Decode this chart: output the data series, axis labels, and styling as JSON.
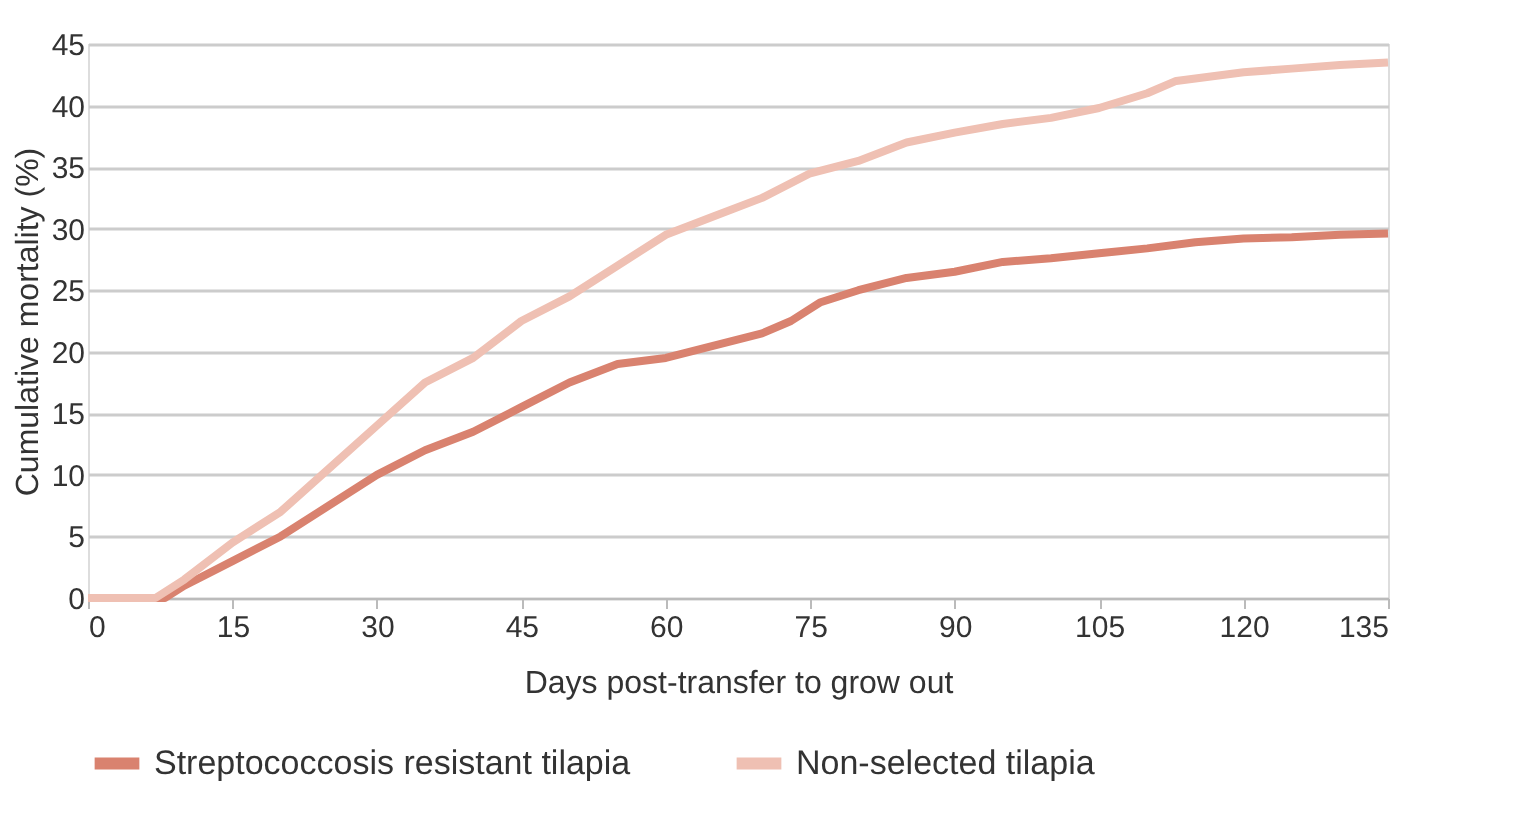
{
  "chart_data": {
    "type": "line",
    "xlabel": "Days post-transfer to grow out",
    "ylabel": "Cumulative mortality (%)",
    "xlim": [
      0,
      135
    ],
    "xticks": [
      0,
      15,
      30,
      45,
      60,
      75,
      90,
      105,
      120,
      135
    ],
    "ylim": [
      0,
      45
    ],
    "yticks": [
      0,
      5,
      10,
      15,
      20,
      25,
      30,
      35,
      40,
      45
    ],
    "grid": "y",
    "legend": "bottom",
    "marker": "none",
    "line_style": "solid",
    "series": [
      {
        "name": "Streptococcosis resistant tilapia",
        "color": "#d9826f",
        "x": [
          0,
          8,
          10,
          15,
          20,
          25,
          30,
          35,
          40,
          45,
          50,
          55,
          60,
          65,
          70,
          73,
          76,
          80,
          85,
          90,
          95,
          100,
          105,
          110,
          115,
          120,
          125,
          130,
          135
        ],
        "values": [
          0,
          0,
          1,
          3,
          5,
          7.5,
          10,
          12,
          13.5,
          15.5,
          17.5,
          19,
          19.5,
          20.5,
          21.5,
          22.5,
          24,
          25,
          26,
          26.5,
          27.3,
          27.6,
          28,
          28.4,
          28.9,
          29.2,
          29.3,
          29.5,
          29.6
        ]
      },
      {
        "name": "Non-selected tilapia",
        "color": "#efc0b3",
        "x": [
          0,
          7,
          10,
          15,
          20,
          25,
          30,
          35,
          40,
          45,
          50,
          55,
          60,
          65,
          70,
          75,
          80,
          85,
          90,
          95,
          100,
          105,
          110,
          113,
          120,
          125,
          130,
          135
        ],
        "values": [
          0,
          0,
          1.5,
          4.5,
          7,
          10.5,
          14,
          17.5,
          19.5,
          22.5,
          24.5,
          27,
          29.5,
          31,
          32.5,
          34.5,
          35.5,
          37,
          37.8,
          38.5,
          39,
          39.8,
          41,
          42,
          42.7,
          43,
          43.3,
          43.5
        ]
      }
    ]
  }
}
